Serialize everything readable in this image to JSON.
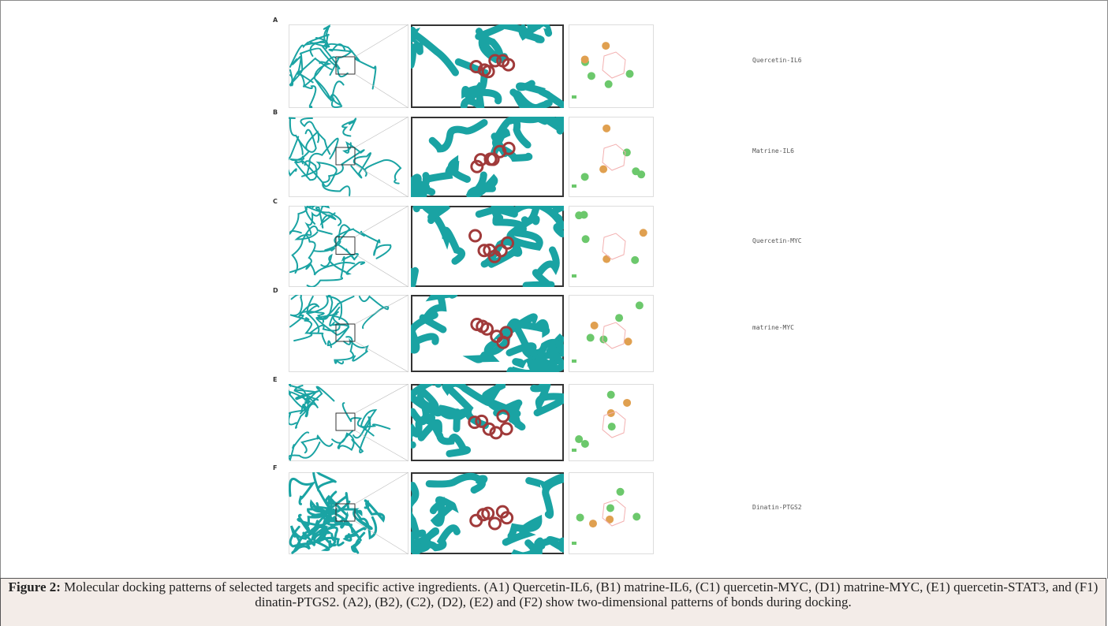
{
  "figure": {
    "rows": [
      {
        "letter": "A",
        "label": "Quercetin-IL6"
      },
      {
        "letter": "B",
        "label": "Matrine-IL6"
      },
      {
        "letter": "C",
        "label": "Quercetin-MYC"
      },
      {
        "letter": "D",
        "label": "matrine-MYC"
      },
      {
        "letter": "E"
      },
      {
        "letter": "F",
        "label": "Dinatin-PTGS2"
      }
    ]
  },
  "caption": {
    "label": "Figure 2:",
    "text": "Molecular docking patterns of selected targets and specific active ingredients. (A1) Quercetin-IL6, (B1) matrine-IL6, (C1) quercetin-MYC, (D1) matrine-MYC, (E1) quercetin-STAT3, and (F1) dinatin-PTGS2. (A2), (B2), (C2), (D2), (E2) and (F2) show two-dimensional patterns of bonds during docking."
  }
}
